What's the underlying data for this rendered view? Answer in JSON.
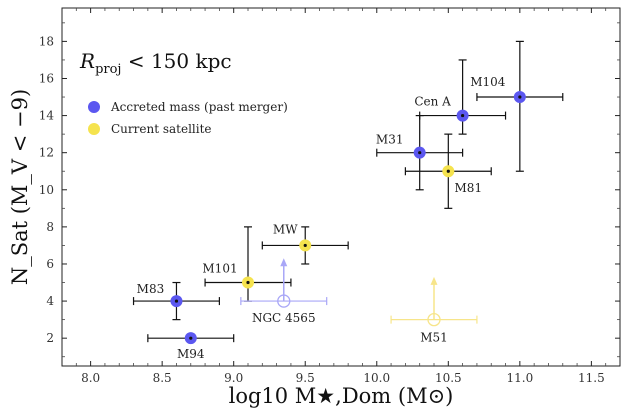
{
  "chart_data": {
    "type": "scatter",
    "title": "R_proj < 150 kpc",
    "title_main": "R",
    "title_sub": "proj",
    "title_rest": " < 150 kpc",
    "xlabel": "log10 M★,Dom (M⊙)",
    "ylabel": "N_Sat (M_V < −9)",
    "xlim": [
      7.8,
      11.7
    ],
    "ylim": [
      0.5,
      19.8
    ],
    "xticks": [
      8.0,
      8.5,
      9.0,
      9.5,
      10.0,
      10.5,
      11.0,
      11.5
    ],
    "yticks": [
      2,
      4,
      6,
      8,
      10,
      12,
      14,
      16,
      18
    ],
    "legend": [
      {
        "label": "Accreted mass (past merger)",
        "color": "#5b57f0"
      },
      {
        "label": "Current satellite",
        "color": "#f5e34e"
      }
    ],
    "colors": {
      "accreted": "#5b57f0",
      "current": "#f5e34e",
      "accreted_light": "#a9a7f7",
      "current_light": "#f7e58a",
      "errorbar": "#111111"
    },
    "points": [
      {
        "name": "M94",
        "x": 8.7,
        "y": 2,
        "xerr": [
          8.4,
          9.0
        ],
        "yerr": [
          2,
          2
        ],
        "type": "accreted",
        "label_dx": 0,
        "label_dy": 20,
        "label_anchor": "middle"
      },
      {
        "name": "M83",
        "x": 8.6,
        "y": 4,
        "xerr": [
          8.3,
          8.9
        ],
        "yerr": [
          3,
          5
        ],
        "type": "accreted",
        "label_dx": -26,
        "label_dy": -8,
        "label_anchor": "middle"
      },
      {
        "name": "M101",
        "x": 9.1,
        "y": 5,
        "xerr": [
          8.8,
          9.4
        ],
        "yerr": [
          4,
          8
        ],
        "type": "current",
        "label_dx": -28,
        "label_dy": -10,
        "label_anchor": "middle"
      },
      {
        "name": "MW",
        "x": 9.5,
        "y": 7,
        "xerr": [
          9.2,
          9.8
        ],
        "yerr": [
          6,
          8
        ],
        "type": "current",
        "label_dx": -20,
        "label_dy": -12,
        "label_anchor": "middle"
      },
      {
        "name": "NGC 4565",
        "x": 9.35,
        "y": 4,
        "xerr": [
          9.05,
          9.65
        ],
        "yerr": [
          4,
          6.2
        ],
        "type": "accreted_limit",
        "label_dx": 0,
        "label_dy": 21,
        "label_anchor": "middle"
      },
      {
        "name": "M51",
        "x": 10.4,
        "y": 3,
        "xerr": [
          10.1,
          10.7
        ],
        "yerr": [
          3,
          5.2
        ],
        "type": "current_limit",
        "label_dx": 0,
        "label_dy": 22,
        "label_anchor": "middle"
      },
      {
        "name": "M31",
        "x": 10.3,
        "y": 12,
        "xerr": [
          10.0,
          10.6
        ],
        "yerr": [
          10,
          14
        ],
        "type": "accreted",
        "label_dx": -30,
        "label_dy": -9,
        "label_anchor": "middle"
      },
      {
        "name": "M81",
        "x": 10.5,
        "y": 11,
        "xerr": [
          10.2,
          10.8
        ],
        "yerr": [
          9,
          13
        ],
        "type": "current",
        "label_dx": 20,
        "label_dy": 21,
        "label_anchor": "middle"
      },
      {
        "name": "Cen A",
        "x": 10.6,
        "y": 14,
        "xerr": [
          10.3,
          10.9
        ],
        "yerr": [
          13,
          17
        ],
        "type": "accreted",
        "label_dx": -30,
        "label_dy": -10,
        "label_anchor": "middle"
      },
      {
        "name": "M104",
        "x": 11.0,
        "y": 15,
        "xerr": [
          10.7,
          11.3
        ],
        "yerr": [
          11,
          18
        ],
        "type": "accreted",
        "label_dx": -32,
        "label_dy": -11,
        "label_anchor": "middle"
      }
    ]
  }
}
